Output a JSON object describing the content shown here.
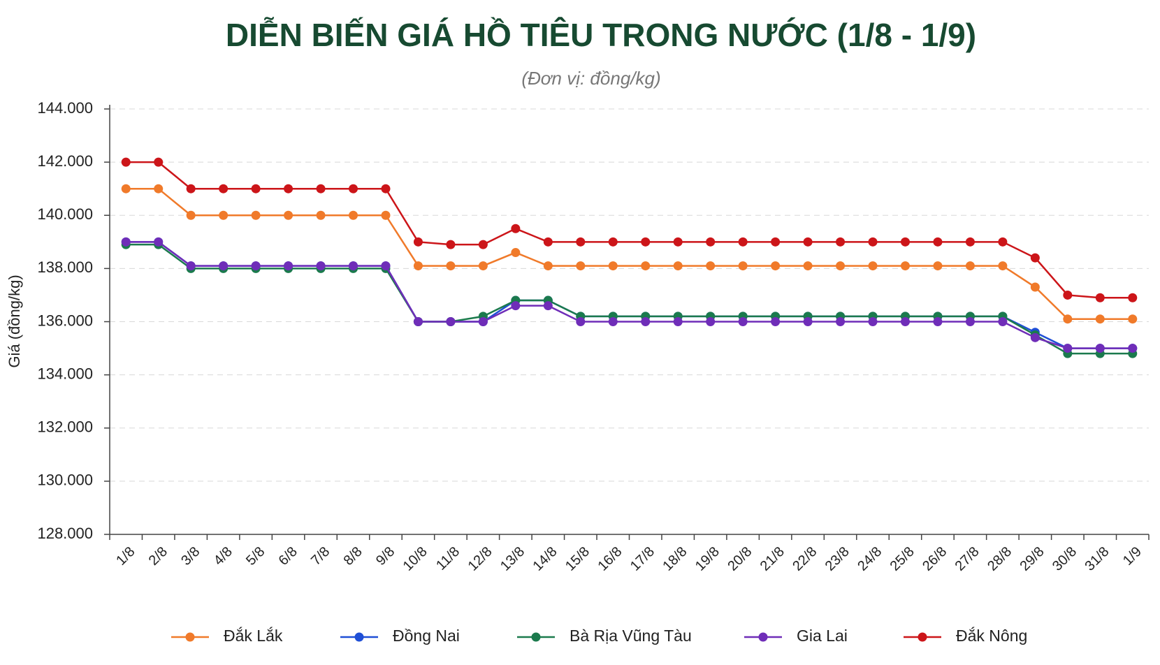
{
  "chart_data": {
    "type": "line",
    "title": "DIỄN BIẾN GIÁ HỒ TIÊU TRONG NƯỚC (1/8 - 1/9)",
    "subtitle": "(Đơn vị: đồng/kg)",
    "y_label": "Giá (đồng/kg)",
    "categories": [
      "1/8",
      "2/8",
      "3/8",
      "4/8",
      "5/8",
      "6/8",
      "7/8",
      "8/8",
      "9/8",
      "10/8",
      "11/8",
      "12/8",
      "13/8",
      "14/8",
      "15/8",
      "16/8",
      "17/8",
      "18/8",
      "19/8",
      "20/8",
      "21/8",
      "22/8",
      "23/8",
      "24/8",
      "25/8",
      "26/8",
      "27/8",
      "28/8",
      "29/8",
      "30/8",
      "31/8",
      "1/9"
    ],
    "ylim": [
      128000,
      144000
    ],
    "yticks": [
      {
        "value": 128000,
        "label": "128.000"
      },
      {
        "value": 130000,
        "label": "130.000"
      },
      {
        "value": 132000,
        "label": "132.000"
      },
      {
        "value": 134000,
        "label": "134.000"
      },
      {
        "value": 136000,
        "label": "136.000"
      },
      {
        "value": 138000,
        "label": "138.000"
      },
      {
        "value": 140000,
        "label": "140.000"
      },
      {
        "value": 142000,
        "label": "142.000"
      },
      {
        "value": 144000,
        "label": "144.000"
      }
    ],
    "grid": true,
    "legend": "bottom",
    "series": [
      {
        "name": "Đắk Lắk",
        "color": "#f07a2a",
        "values": [
          141000,
          141000,
          140000,
          140000,
          140000,
          140000,
          140000,
          140000,
          140000,
          138100,
          138100,
          138100,
          138600,
          138100,
          138100,
          138100,
          138100,
          138100,
          138100,
          138100,
          138100,
          138100,
          138100,
          138100,
          138100,
          138100,
          138100,
          138100,
          137300,
          136100,
          136100,
          136100
        ]
      },
      {
        "name": "Đồng Nai",
        "color": "#1f4fd6",
        "values": [
          139000,
          139000,
          138100,
          138100,
          138100,
          138100,
          138100,
          138100,
          138100,
          136000,
          136000,
          136000,
          136800,
          136800,
          136200,
          136200,
          136200,
          136200,
          136200,
          136200,
          136200,
          136200,
          136200,
          136200,
          136200,
          136200,
          136200,
          136200,
          135600,
          135000,
          135000,
          135000
        ]
      },
      {
        "name": "Bà Rịa Vũng Tàu",
        "color": "#1b7a4d",
        "values": [
          138900,
          138900,
          138000,
          138000,
          138000,
          138000,
          138000,
          138000,
          138000,
          136000,
          136000,
          136200,
          136800,
          136800,
          136200,
          136200,
          136200,
          136200,
          136200,
          136200,
          136200,
          136200,
          136200,
          136200,
          136200,
          136200,
          136200,
          136200,
          135500,
          134800,
          134800,
          134800
        ]
      },
      {
        "name": "Gia Lai",
        "color": "#6f2db8",
        "values": [
          139000,
          139000,
          138100,
          138100,
          138100,
          138100,
          138100,
          138100,
          138100,
          136000,
          136000,
          136000,
          136600,
          136600,
          136000,
          136000,
          136000,
          136000,
          136000,
          136000,
          136000,
          136000,
          136000,
          136000,
          136000,
          136000,
          136000,
          136000,
          135400,
          135000,
          135000,
          135000
        ]
      },
      {
        "name": "Đắk Nông",
        "color": "#cc1519",
        "values": [
          142000,
          142000,
          141000,
          141000,
          141000,
          141000,
          141000,
          141000,
          141000,
          139000,
          138900,
          138900,
          139500,
          139000,
          139000,
          139000,
          139000,
          139000,
          139000,
          139000,
          139000,
          139000,
          139000,
          139000,
          139000,
          139000,
          139000,
          139000,
          138400,
          137000,
          136900,
          136900
        ]
      }
    ]
  }
}
